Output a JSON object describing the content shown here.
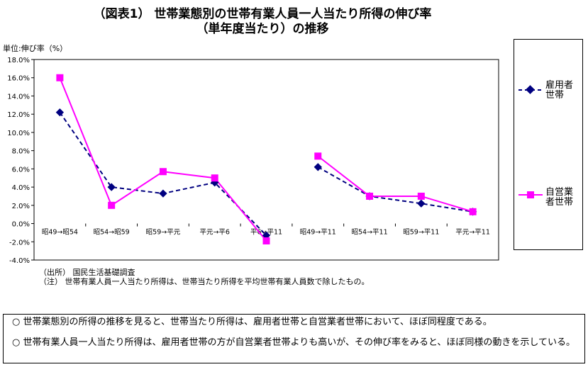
{
  "chart_data": {
    "type": "line",
    "title": "（図表1） 世帯業態別の世帯有業人員一人当たり所得の伸び率",
    "subtitle": "（単年度当たり）の推移",
    "ylabel": "単位:伸び率（%）",
    "ylim": [
      -4.0,
      18.0
    ],
    "yticks": [
      "18.0%",
      "16.0%",
      "14.0%",
      "12.0%",
      "10.0%",
      "8.0%",
      "6.0%",
      "4.0%",
      "2.0%",
      "0.0%",
      "-2.0%",
      "-4.0%"
    ],
    "categories": [
      "昭49→昭54",
      "昭54→昭59",
      "昭59→平元",
      "平元→平6",
      "平6→平11",
      "昭49→平11",
      "昭54→平11",
      "昭59→平11",
      "平元→平11"
    ],
    "series": [
      {
        "name": "雇用者世帯",
        "color": "#000080",
        "values": [
          12.2,
          4.0,
          3.3,
          4.5,
          -1.3,
          6.2,
          3.0,
          2.2,
          1.3
        ]
      },
      {
        "name": "自営業者世帯",
        "color": "#ff00ff",
        "values": [
          16.0,
          2.0,
          5.7,
          5.0,
          -1.9,
          7.4,
          3.0,
          3.0,
          1.3
        ]
      }
    ],
    "segments": [
      [
        0,
        4
      ],
      [
        5,
        8
      ]
    ],
    "grid": true,
    "legend": "right",
    "plot_bg": "#ffffff"
  },
  "legend": {
    "employee_label": "雇用者\n世帯",
    "selfemployed_label": "自営業\n者世帯"
  },
  "notes": {
    "source": "（出所） 国民生活基礎調査",
    "note": "（注） 世帯有業人員一人当たり所得は、世帯当たり所得を平均世帯有業人員数で除したもの。"
  },
  "summary": {
    "point1": "○ 世帯業態別の所得の推移を見ると、世帯当たり所得は、雇用者世帯と自営業者世帯において、ほぼ同程度である。",
    "point2": "○ 世帯有業人員一人当たり所得は、雇用者世帯の方が自営業者世帯よりも高いが、その伸び率をみると、ほぼ同様の動きを示している。"
  }
}
